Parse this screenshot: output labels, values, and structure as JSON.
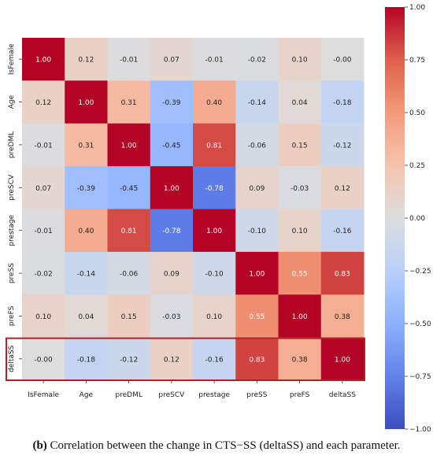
{
  "chart_data": {
    "type": "heatmap",
    "row_labels": [
      "IsFemale",
      "Age",
      "preDML",
      "preSCV",
      "prestage",
      "preSS",
      "preFS",
      "deltaSS"
    ],
    "col_labels": [
      "IsFemale",
      "Age",
      "preDML",
      "preSCV",
      "prestage",
      "preSS",
      "preFS",
      "deltaSS"
    ],
    "values": [
      [
        1.0,
        0.12,
        -0.01,
        0.07,
        -0.01,
        -0.02,
        0.1,
        -0.0
      ],
      [
        0.12,
        1.0,
        0.31,
        -0.39,
        0.4,
        -0.14,
        0.04,
        -0.18
      ],
      [
        -0.01,
        0.31,
        1.0,
        -0.45,
        0.81,
        -0.06,
        0.15,
        -0.12
      ],
      [
        0.07,
        -0.39,
        -0.45,
        1.0,
        -0.78,
        0.09,
        -0.03,
        0.12
      ],
      [
        -0.01,
        0.4,
        0.81,
        -0.78,
        1.0,
        -0.1,
        0.1,
        -0.16
      ],
      [
        -0.02,
        -0.14,
        -0.06,
        0.09,
        -0.1,
        1.0,
        0.55,
        0.83
      ],
      [
        0.1,
        0.04,
        0.15,
        -0.03,
        0.1,
        0.55,
        1.0,
        0.38
      ],
      [
        -0.0,
        -0.18,
        -0.12,
        0.12,
        -0.16,
        0.83,
        0.38,
        1.0
      ]
    ],
    "value_range": [
      -1,
      1
    ],
    "colormap": "coolwarm",
    "colorbar_ticks": [
      "1.00",
      "0.75",
      "0.50",
      "0.25",
      "0.00",
      "−0.25",
      "−0.50",
      "−0.75",
      "−1.00"
    ],
    "highlight_row": "deltaSS",
    "highlight_color": "#b22222"
  },
  "caption": {
    "label": "(b)",
    "text": "Correlation between the change in CTS−SS (deltaSS) and each parameter."
  }
}
